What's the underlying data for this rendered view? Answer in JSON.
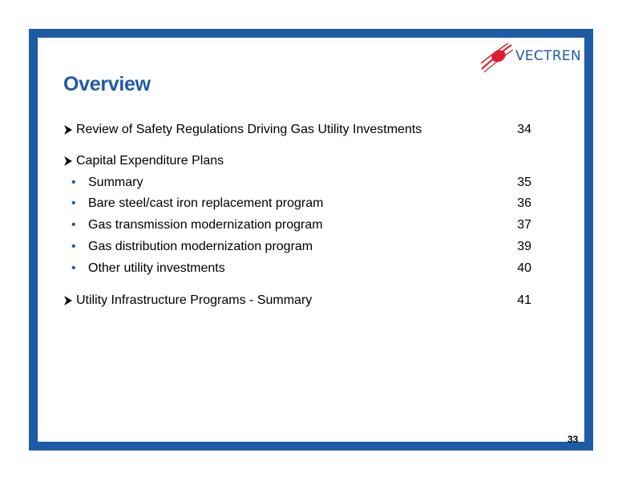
{
  "slide": {
    "title": "Overview",
    "page_number": "33"
  },
  "logo": {
    "text": "VECTREN",
    "accent_color": "#d6202e",
    "brand_color": "#1d5ba6"
  },
  "items": [
    {
      "type": "main",
      "label": "Review of Safety Regulations Driving Gas Utility Investments",
      "page": "34"
    },
    {
      "type": "main",
      "label": "Capital Expenditure Plans",
      "page": ""
    },
    {
      "type": "sub",
      "label": "Summary",
      "page": "35"
    },
    {
      "type": "sub",
      "label": "Bare steel/cast iron replacement program",
      "page": "36"
    },
    {
      "type": "sub",
      "label": "Gas transmission modernization program",
      "page": "37"
    },
    {
      "type": "sub",
      "label": "Gas distribution modernization program",
      "page": "39"
    },
    {
      "type": "sub",
      "label": "Other utility investments",
      "page": "40"
    },
    {
      "type": "main",
      "label": "Utility Infrastructure Programs - Summary",
      "page": "41"
    }
  ]
}
